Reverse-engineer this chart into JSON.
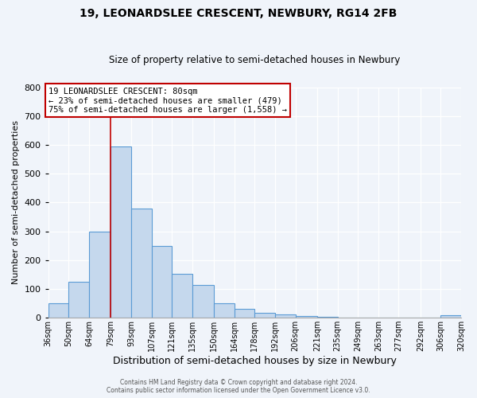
{
  "title": "19, LEONARDSLEE CRESCENT, NEWBURY, RG14 2FB",
  "subtitle": "Size of property relative to semi-detached houses in Newbury",
  "xlabel": "Distribution of semi-detached houses by size in Newbury",
  "ylabel": "Number of semi-detached properties",
  "bin_labels": [
    "36sqm",
    "50sqm",
    "64sqm",
    "79sqm",
    "93sqm",
    "107sqm",
    "121sqm",
    "135sqm",
    "150sqm",
    "164sqm",
    "178sqm",
    "192sqm",
    "206sqm",
    "221sqm",
    "235sqm",
    "249sqm",
    "263sqm",
    "277sqm",
    "292sqm",
    "306sqm",
    "320sqm"
  ],
  "bar_values": [
    50,
    125,
    300,
    595,
    380,
    250,
    152,
    115,
    50,
    30,
    18,
    12,
    5,
    2,
    1,
    0,
    0,
    0,
    0,
    8
  ],
  "bar_color": "#c5d8ed",
  "bar_edge_color": "#5b9bd5",
  "property_line_x_label": "79sqm",
  "property_line_color": "#c00000",
  "annotation_title": "19 LEONARDSLEE CRESCENT: 80sqm",
  "annotation_line1": "← 23% of semi-detached houses are smaller (479)",
  "annotation_line2": "75% of semi-detached houses are larger (1,558) →",
  "annotation_box_color": "#ffffff",
  "annotation_box_edge": "#c00000",
  "ylim": [
    0,
    800
  ],
  "yticks": [
    0,
    100,
    200,
    300,
    400,
    500,
    600,
    700,
    800
  ],
  "footer_line1": "Contains HM Land Registry data © Crown copyright and database right 2024.",
  "footer_line2": "Contains public sector information licensed under the Open Government Licence v3.0.",
  "bg_color": "#f0f4fa",
  "plot_bg_color": "#f0f4fa",
  "grid_color": "#d0d8e8"
}
